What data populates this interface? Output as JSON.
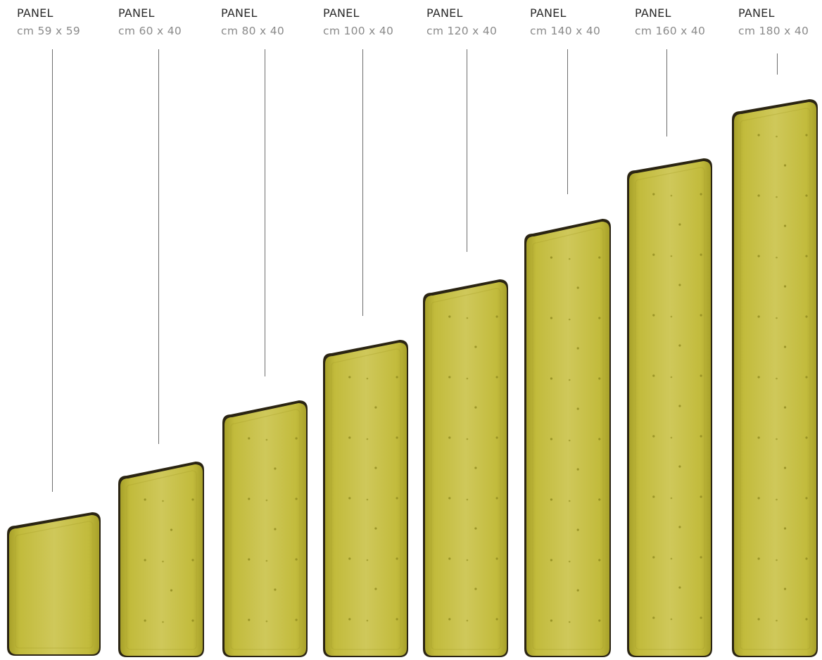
{
  "panel_colors": {
    "fabric": "#c2bb3c",
    "fabric_light": "#cfc85a",
    "fabric_dark": "#a8a12a",
    "edge": "#2a2412",
    "button": "#8f8a1e"
  },
  "panels": [
    {
      "title": "PANEL",
      "size": "cm 59 x 59"
    },
    {
      "title": "PANEL",
      "size": "cm 60 x 40"
    },
    {
      "title": "PANEL",
      "size": "cm 80 x 40"
    },
    {
      "title": "PANEL",
      "size": "cm 100 x 40"
    },
    {
      "title": "PANEL",
      "size": "cm 120 x 40"
    },
    {
      "title": "PANEL",
      "size": "cm 140 x 40"
    },
    {
      "title": "PANEL",
      "size": "cm 160 x 40"
    },
    {
      "title": "PANEL",
      "size": "cm 180 x 40"
    }
  ]
}
